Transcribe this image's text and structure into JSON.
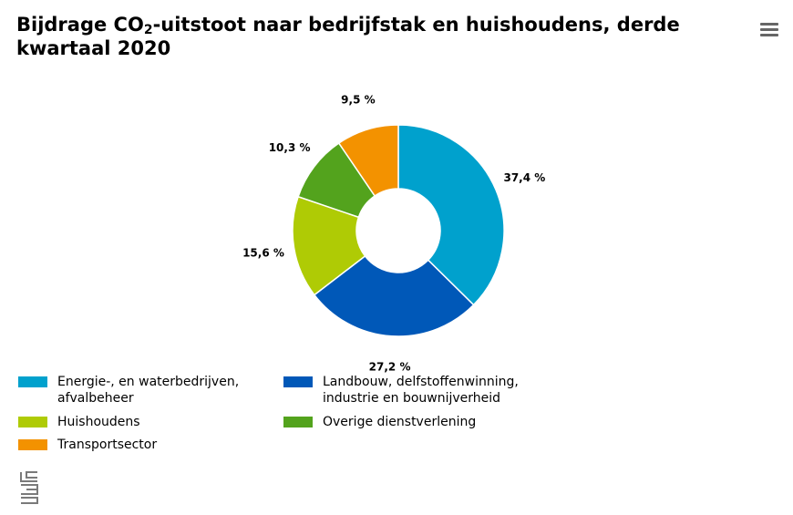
{
  "header": {
    "title_part1": "Bijdrage CO",
    "title_sub": "2",
    "title_part2": "-uitstoot naar bedrijfstak en huishoudens, derde kwartaal 2020",
    "menu_icon": "hamburger-menu-icon"
  },
  "chart_data": {
    "type": "pie",
    "donut": true,
    "title": "Bijdrage CO₂-uitstoot naar bedrijfstak en huishoudens, derde kwartaal 2020",
    "categories": [
      "Energie-, en waterbedrijven, afvalbeheer",
      "Landbouw, delfstoffenwinning, industrie en bouwnijverheid",
      "Huishoudens",
      "Overige dienstverlening",
      "Transportsector"
    ],
    "values": [
      37.4,
      27.2,
      15.6,
      10.3,
      9.5
    ],
    "labels": [
      "37,4 %",
      "27,2 %",
      "15,6 %",
      "10,3 %",
      "9,5 %"
    ],
    "colors": [
      "#00a1cd",
      "#0058b8",
      "#afcb05",
      "#53a31d",
      "#f39200"
    ]
  },
  "legend": {
    "items": [
      {
        "line1": "Energie-, en waterbedrijven,",
        "line2": "afvalbeheer",
        "color": "#00a1cd"
      },
      {
        "line1": "Landbouw, delfstoffenwinning,",
        "line2": "industrie en bouwnijverheid",
        "color": "#0058b8"
      },
      {
        "line1": "Huishoudens",
        "line2": "",
        "color": "#afcb05"
      },
      {
        "line1": "Overige dienstverlening",
        "line2": "",
        "color": "#53a31d"
      },
      {
        "line1": "Transportsector",
        "line2": "",
        "color": "#f39200"
      }
    ]
  },
  "footer": {
    "logo_icon": "cbs-logo-icon"
  }
}
